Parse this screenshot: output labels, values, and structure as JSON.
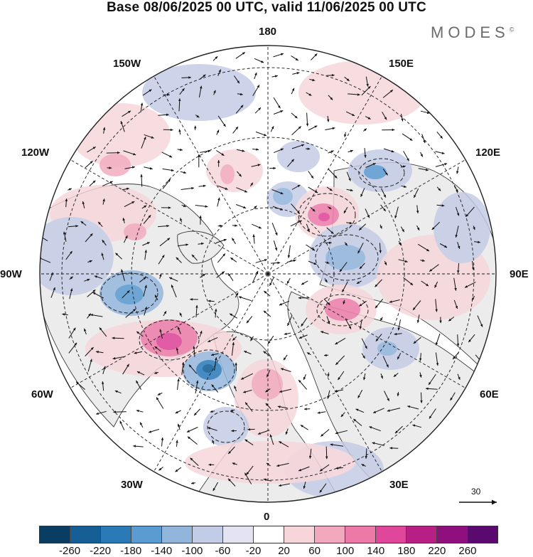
{
  "title": "Base 08/06/2025 00 UTC, valid 11/06/2025 00 UTC",
  "brand": {
    "name": "MODES",
    "mark": "©"
  },
  "longitude_labels": {
    "lon_180": "180",
    "lon_150e": "150E",
    "lon_120e": "120E",
    "lon_90e": "90E",
    "lon_60e": "60E",
    "lon_30e": "30E",
    "lon_0": "0",
    "lon_30w": "30W",
    "lon_60w": "60W",
    "lon_90w": "90W",
    "lon_120w": "120W",
    "lon_150w": "150W"
  },
  "vector_reference": {
    "label": "30"
  },
  "colorbar": {
    "ticks": [
      "-260",
      "-220",
      "-180",
      "-140",
      "-100",
      "-60",
      "-20",
      "20",
      "60",
      "100",
      "140",
      "180",
      "220",
      "260"
    ],
    "colors": [
      "#0a3d62",
      "#155f95",
      "#2a7ab8",
      "#5a9bd1",
      "#92b5dc",
      "#c3cce6",
      "#e3e3f1",
      "#ffffff",
      "#f6d6da",
      "#f2a9bd",
      "#ec79a8",
      "#e0479b",
      "#b81f84",
      "#8e0f7d",
      "#5a0a6e"
    ]
  },
  "map_colors": {
    "land_fill": "#ececec",
    "coast": "#3a3a3a",
    "grid": "#1a1a1a",
    "arrow": "#111111"
  }
}
